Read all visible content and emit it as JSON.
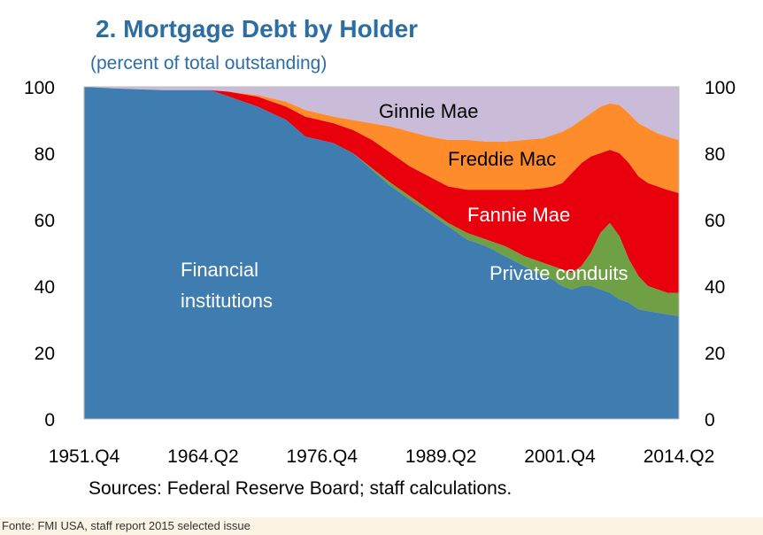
{
  "footer": "Fonte: FMI USA, staff report 2015 selected issue",
  "chart_data": {
    "type": "area",
    "title": "2. Mortgage Debt by Holder",
    "subtitle": "(percent of total outstanding)",
    "source": "Sources: Federal Reserve Board; staff calculations.",
    "ylim": [
      0,
      100
    ],
    "yticks": [
      0,
      20,
      40,
      60,
      80,
      100
    ],
    "xticks": [
      "1951.Q4",
      "1964.Q2",
      "1976.Q4",
      "1989.Q2",
      "2001.Q4",
      "2014.Q2"
    ],
    "xlim": [
      1951.75,
      2014.25
    ],
    "stacking": "cumulative",
    "x": [
      1951.75,
      1955,
      1960,
      1965,
      1967,
      1970,
      1973,
      1975,
      1978,
      1980,
      1982,
      1984,
      1986,
      1988,
      1990,
      1992,
      1994,
      1996,
      1998,
      2000,
      2001,
      2002,
      2003,
      2004,
      2005,
      2006,
      2007,
      2008,
      2009,
      2010,
      2011,
      2012,
      2013,
      2014.25
    ],
    "series": [
      {
        "name": "Financial institutions",
        "color": "#3f7cb0",
        "values": [
          100,
          99.5,
          99,
          99,
          97,
          94,
          90,
          85,
          83,
          80,
          75,
          70,
          66,
          62,
          58,
          54,
          52,
          49,
          46,
          43,
          42,
          40,
          39,
          40,
          40,
          39,
          38,
          36,
          35,
          33,
          32.5,
          32,
          31.5,
          31
        ]
      },
      {
        "name": "Private conduits",
        "color": "#70a046",
        "values": [
          100,
          99.5,
          99,
          99,
          97,
          94,
          90,
          85,
          83,
          80,
          75.5,
          71,
          67,
          63,
          59,
          56,
          54,
          52,
          49,
          47,
          46,
          45,
          44,
          46,
          50,
          56,
          59,
          55,
          48,
          43,
          40,
          39,
          38,
          38
        ]
      },
      {
        "name": "Fannie Mae",
        "color": "#e8000c",
        "values": [
          100,
          99.5,
          99,
          99,
          98.5,
          97,
          94,
          91,
          89,
          87,
          84,
          80,
          76,
          73,
          70,
          69,
          69,
          69,
          69,
          69.5,
          70,
          71,
          74,
          77,
          79,
          80,
          81,
          80,
          77,
          73,
          71,
          70,
          69,
          68
        ]
      },
      {
        "name": "Freddie Mac",
        "color": "#ff8c2a",
        "values": [
          100,
          99.5,
          99,
          99,
          98.5,
          97.5,
          95.5,
          93,
          91,
          90,
          89,
          88,
          86.5,
          85,
          84,
          84,
          83.5,
          83.5,
          84,
          84.5,
          85.5,
          86.5,
          88,
          90,
          92,
          94,
          95,
          94.5,
          92,
          89,
          87.5,
          86,
          85,
          84
        ]
      },
      {
        "name": "Ginnie Mae",
        "color": "#cabcd9",
        "values": [
          100,
          100,
          100,
          100,
          100,
          100,
          100,
          100,
          100,
          100,
          100,
          100,
          100,
          100,
          100,
          100,
          100,
          100,
          100,
          100,
          100,
          100,
          100,
          100,
          100,
          100,
          100,
          100,
          100,
          100,
          100,
          100,
          100,
          100
        ]
      }
    ],
    "grid": false
  }
}
